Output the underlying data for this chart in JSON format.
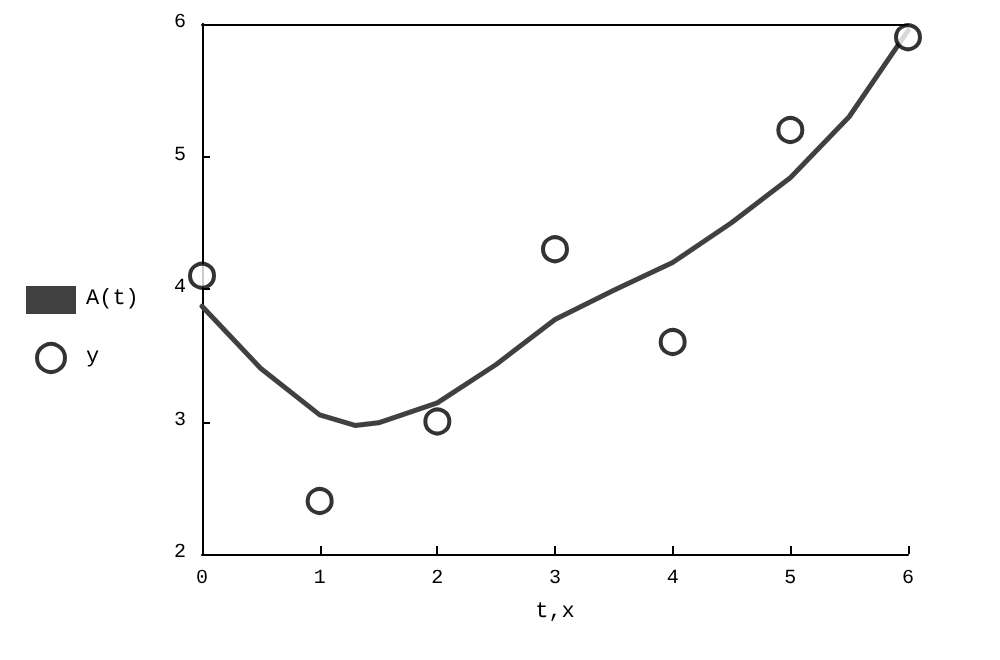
{
  "chart_data": {
    "type": "line",
    "xlabel": "t,x",
    "series": [
      {
        "name": "A(t)",
        "color": "#404040",
        "marker": "none",
        "x": [
          0,
          0.5,
          1,
          1.3,
          1.5,
          2,
          2.5,
          3,
          3.5,
          4,
          4.5,
          5,
          5.5,
          6
        ],
        "values": [
          3.87,
          3.4,
          3.05,
          2.97,
          2.99,
          3.14,
          3.43,
          3.77,
          3.99,
          4.2,
          4.5,
          4.84,
          5.3,
          5.95
        ]
      },
      {
        "name": "y",
        "type": "scatter",
        "color": "#000000",
        "marker": "circle",
        "x": [
          0,
          1,
          2,
          3,
          4,
          5,
          6
        ],
        "values": [
          4.1,
          2.4,
          3.0,
          4.3,
          3.6,
          5.2,
          5.9
        ]
      }
    ],
    "xlim": [
      0,
      6
    ],
    "xticks": [
      0,
      1,
      2,
      3,
      4,
      5,
      6
    ],
    "ylim": [
      2,
      6
    ],
    "yticks": [
      2,
      3,
      4,
      5,
      6
    ],
    "grid": false,
    "legend": "left"
  }
}
